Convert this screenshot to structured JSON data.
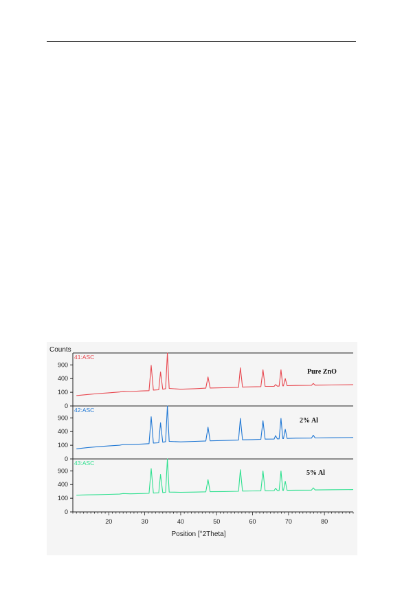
{
  "page": {
    "header_rule": true
  },
  "chart_data": {
    "type": "line",
    "title": "",
    "xlabel": "Position [°2Theta]",
    "ylabel": "Counts",
    "xlim": [
      10,
      88
    ],
    "x_ticks": [
      20,
      30,
      40,
      50,
      60,
      70,
      80
    ],
    "y_ticks": [
      0,
      100,
      400,
      900
    ],
    "y_scale": "sqrt",
    "grid": false,
    "background_color": "#f5f5f5",
    "panels": [
      {
        "tag": "41:ASC",
        "sample": "Pure ZnO",
        "color": "#e8474f",
        "ylim": [
          0,
          1500
        ],
        "series": [
          {
            "x": 11,
            "y": 58
          },
          {
            "x": 14,
            "y": 70
          },
          {
            "x": 17,
            "y": 82
          },
          {
            "x": 20,
            "y": 92
          },
          {
            "x": 23,
            "y": 104
          },
          {
            "x": 24,
            "y": 115
          },
          {
            "x": 26,
            "y": 112
          },
          {
            "x": 29,
            "y": 120
          },
          {
            "x": 31.2,
            "y": 125
          },
          {
            "x": 31.8,
            "y": 880
          },
          {
            "x": 32.4,
            "y": 135
          },
          {
            "x": 33.9,
            "y": 140
          },
          {
            "x": 34.4,
            "y": 620
          },
          {
            "x": 35.0,
            "y": 150
          },
          {
            "x": 35.8,
            "y": 160
          },
          {
            "x": 36.3,
            "y": 1500
          },
          {
            "x": 36.8,
            "y": 165
          },
          {
            "x": 40,
            "y": 150
          },
          {
            "x": 44,
            "y": 160
          },
          {
            "x": 47.0,
            "y": 170
          },
          {
            "x": 47.6,
            "y": 450
          },
          {
            "x": 48.2,
            "y": 172
          },
          {
            "x": 52,
            "y": 178
          },
          {
            "x": 56.1,
            "y": 185
          },
          {
            "x": 56.6,
            "y": 780
          },
          {
            "x": 57.2,
            "y": 190
          },
          {
            "x": 60,
            "y": 195
          },
          {
            "x": 62.3,
            "y": 200
          },
          {
            "x": 62.9,
            "y": 700
          },
          {
            "x": 63.5,
            "y": 205
          },
          {
            "x": 66.0,
            "y": 205
          },
          {
            "x": 66.4,
            "y": 245
          },
          {
            "x": 66.9,
            "y": 210
          },
          {
            "x": 67.4,
            "y": 210
          },
          {
            "x": 67.9,
            "y": 700
          },
          {
            "x": 68.4,
            "y": 215
          },
          {
            "x": 68.6,
            "y": 215
          },
          {
            "x": 69.1,
            "y": 400
          },
          {
            "x": 69.6,
            "y": 220
          },
          {
            "x": 72,
            "y": 225
          },
          {
            "x": 76.4,
            "y": 228
          },
          {
            "x": 76.9,
            "y": 270
          },
          {
            "x": 77.4,
            "y": 230
          },
          {
            "x": 82,
            "y": 235
          },
          {
            "x": 88,
            "y": 242
          }
        ]
      },
      {
        "tag": "42:ASC",
        "sample": "2% Al",
        "color": "#1f77d4",
        "ylim": [
          0,
          1500
        ],
        "series": [
          {
            "x": 11,
            "y": 55
          },
          {
            "x": 14,
            "y": 68
          },
          {
            "x": 17,
            "y": 80
          },
          {
            "x": 20,
            "y": 90
          },
          {
            "x": 23,
            "y": 100
          },
          {
            "x": 24,
            "y": 110
          },
          {
            "x": 26,
            "y": 110
          },
          {
            "x": 29,
            "y": 118
          },
          {
            "x": 31.2,
            "y": 125
          },
          {
            "x": 31.8,
            "y": 950
          },
          {
            "x": 32.4,
            "y": 135
          },
          {
            "x": 33.9,
            "y": 140
          },
          {
            "x": 34.4,
            "y": 700
          },
          {
            "x": 35.0,
            "y": 150
          },
          {
            "x": 35.8,
            "y": 160
          },
          {
            "x": 36.3,
            "y": 1500
          },
          {
            "x": 36.8,
            "y": 165
          },
          {
            "x": 40,
            "y": 155
          },
          {
            "x": 44,
            "y": 165
          },
          {
            "x": 47.0,
            "y": 172
          },
          {
            "x": 47.6,
            "y": 540
          },
          {
            "x": 48.2,
            "y": 175
          },
          {
            "x": 52,
            "y": 182
          },
          {
            "x": 56.1,
            "y": 190
          },
          {
            "x": 56.6,
            "y": 880
          },
          {
            "x": 57.2,
            "y": 195
          },
          {
            "x": 60,
            "y": 200
          },
          {
            "x": 62.3,
            "y": 205
          },
          {
            "x": 62.9,
            "y": 780
          },
          {
            "x": 63.5,
            "y": 210
          },
          {
            "x": 66.0,
            "y": 212
          },
          {
            "x": 66.4,
            "y": 290
          },
          {
            "x": 66.9,
            "y": 215
          },
          {
            "x": 67.4,
            "y": 215
          },
          {
            "x": 67.9,
            "y": 880
          },
          {
            "x": 68.4,
            "y": 220
          },
          {
            "x": 68.6,
            "y": 220
          },
          {
            "x": 69.1,
            "y": 470
          },
          {
            "x": 69.6,
            "y": 225
          },
          {
            "x": 72,
            "y": 230
          },
          {
            "x": 76.4,
            "y": 232
          },
          {
            "x": 76.9,
            "y": 300
          },
          {
            "x": 77.4,
            "y": 235
          },
          {
            "x": 82,
            "y": 240
          },
          {
            "x": 88,
            "y": 246
          }
        ]
      },
      {
        "tag": "43:ASC",
        "sample": "5% Al",
        "color": "#2ee08f",
        "ylim": [
          0,
          1500
        ],
        "series": [
          {
            "x": 11,
            "y": 150
          },
          {
            "x": 14,
            "y": 155
          },
          {
            "x": 17,
            "y": 160
          },
          {
            "x": 20,
            "y": 165
          },
          {
            "x": 23,
            "y": 170
          },
          {
            "x": 24,
            "y": 180
          },
          {
            "x": 26,
            "y": 175
          },
          {
            "x": 29,
            "y": 180
          },
          {
            "x": 31.2,
            "y": 185
          },
          {
            "x": 31.8,
            "y": 1000
          },
          {
            "x": 32.4,
            "y": 190
          },
          {
            "x": 33.9,
            "y": 195
          },
          {
            "x": 34.4,
            "y": 750
          },
          {
            "x": 35.0,
            "y": 200
          },
          {
            "x": 35.8,
            "y": 205
          },
          {
            "x": 36.3,
            "y": 1500
          },
          {
            "x": 36.8,
            "y": 210
          },
          {
            "x": 40,
            "y": 205
          },
          {
            "x": 44,
            "y": 210
          },
          {
            "x": 47.0,
            "y": 215
          },
          {
            "x": 47.6,
            "y": 560
          },
          {
            "x": 48.2,
            "y": 218
          },
          {
            "x": 52,
            "y": 222
          },
          {
            "x": 56.1,
            "y": 228
          },
          {
            "x": 56.6,
            "y": 950
          },
          {
            "x": 57.2,
            "y": 232
          },
          {
            "x": 60,
            "y": 235
          },
          {
            "x": 62.3,
            "y": 238
          },
          {
            "x": 62.9,
            "y": 900
          },
          {
            "x": 63.5,
            "y": 240
          },
          {
            "x": 66.0,
            "y": 242
          },
          {
            "x": 66.4,
            "y": 300
          },
          {
            "x": 66.9,
            "y": 245
          },
          {
            "x": 67.4,
            "y": 245
          },
          {
            "x": 67.9,
            "y": 900
          },
          {
            "x": 68.4,
            "y": 248
          },
          {
            "x": 68.6,
            "y": 248
          },
          {
            "x": 69.1,
            "y": 500
          },
          {
            "x": 69.6,
            "y": 250
          },
          {
            "x": 72,
            "y": 252
          },
          {
            "x": 76.4,
            "y": 255
          },
          {
            "x": 76.9,
            "y": 310
          },
          {
            "x": 77.4,
            "y": 258
          },
          {
            "x": 82,
            "y": 262
          },
          {
            "x": 88,
            "y": 266
          }
        ]
      }
    ]
  }
}
